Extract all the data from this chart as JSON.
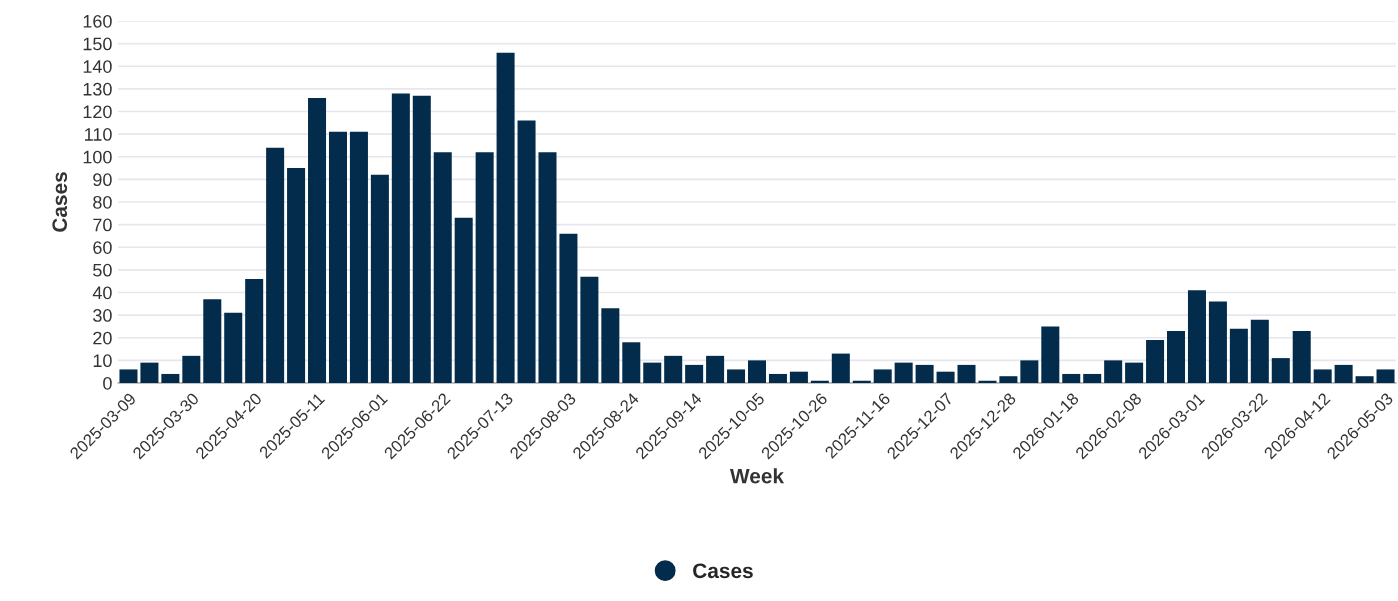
{
  "chart_data": {
    "type": "bar",
    "xlabel": "Week",
    "ylabel": "Cases",
    "categories": [
      "2025-03-09",
      null,
      null,
      "2025-03-30",
      null,
      null,
      "2025-04-20",
      null,
      null,
      "2025-05-11",
      null,
      null,
      "2025-06-01",
      null,
      null,
      "2025-06-22",
      null,
      null,
      "2025-07-13",
      null,
      null,
      "2025-08-03",
      null,
      null,
      "2025-08-24",
      null,
      null,
      "2025-09-14",
      null,
      null,
      "2025-10-05",
      null,
      null,
      "2025-10-26",
      null,
      null,
      "2025-11-16",
      null,
      null,
      "2025-12-07",
      null,
      null,
      "2025-12-28",
      null,
      null,
      "2026-01-18",
      null,
      null,
      "2026-02-08",
      null,
      null,
      "2026-03-01",
      null,
      null,
      "2026-03-22",
      null,
      null,
      "2026-04-12",
      null,
      null,
      "2026-05-03"
    ],
    "series": [
      {
        "name": "Cases",
        "color": "#022b4c",
        "values": [
          6,
          9,
          4,
          12,
          37,
          31,
          46,
          104,
          95,
          126,
          111,
          111,
          92,
          128,
          127,
          102,
          73,
          102,
          146,
          116,
          102,
          66,
          47,
          33,
          18,
          9,
          12,
          8,
          12,
          6,
          10,
          4,
          5,
          1,
          13,
          1,
          6,
          9,
          8,
          5,
          8,
          1,
          3,
          10,
          25,
          4,
          4,
          10,
          9,
          19,
          23,
          41,
          36,
          24,
          28,
          11,
          23,
          6,
          8,
          3,
          6
        ]
      }
    ],
    "ylim": [
      0,
      160
    ],
    "yticks": [
      0,
      10,
      20,
      30,
      40,
      50,
      60,
      70,
      80,
      90,
      100,
      110,
      120,
      130,
      140,
      150,
      160
    ],
    "grid": "y",
    "legend": "bottom"
  }
}
